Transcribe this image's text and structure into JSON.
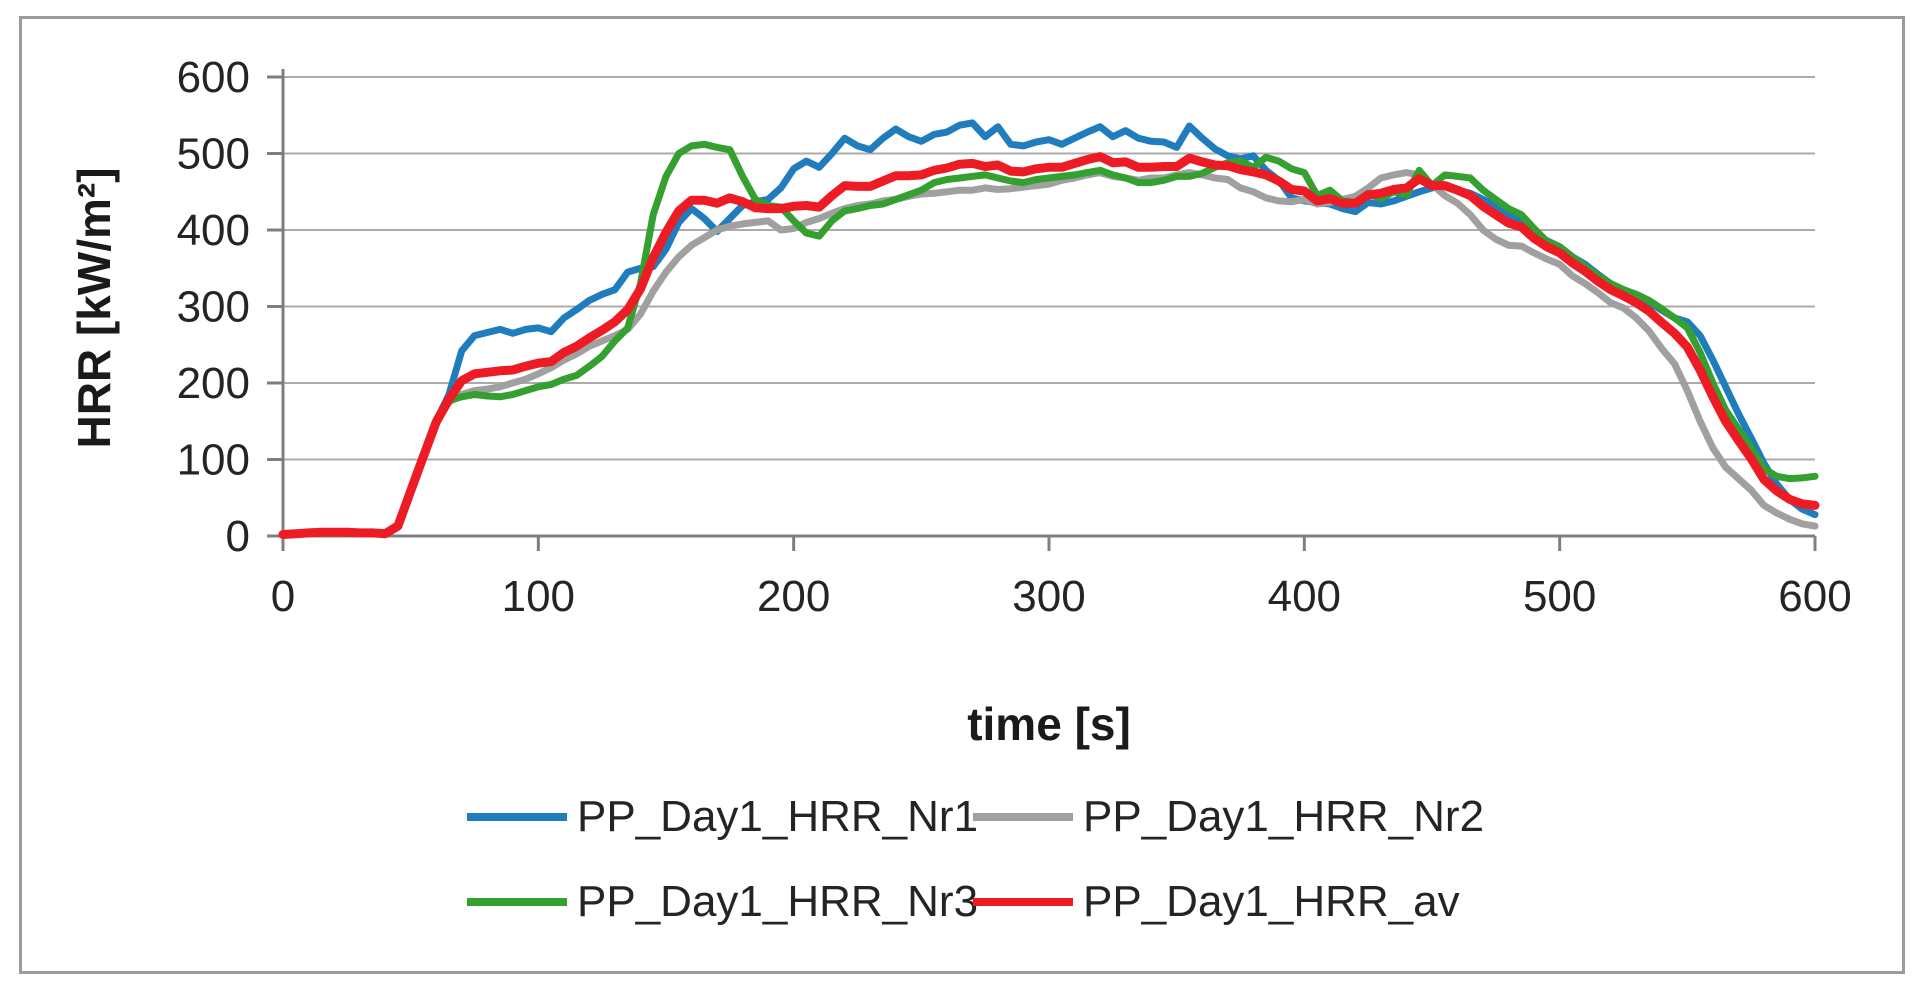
{
  "figure": {
    "background": "#ffffff",
    "border_color": "#9b9b9b"
  },
  "chart_data": {
    "type": "line",
    "title": "",
    "xlabel": "time [s]",
    "ylabel": "HRR [kW/m²]",
    "xlim": [
      0,
      600
    ],
    "ylim": [
      0,
      600
    ],
    "x_ticks": [
      0,
      100,
      200,
      300,
      400,
      500,
      600
    ],
    "y_ticks": [
      0,
      100,
      200,
      300,
      400,
      500,
      600
    ],
    "grid": true,
    "grid_color": "#ababab",
    "axis_color": "#7f7f7f",
    "legend_position": "bottom",
    "x": [
      0,
      5,
      10,
      15,
      20,
      25,
      30,
      35,
      40,
      45,
      50,
      55,
      60,
      65,
      70,
      75,
      80,
      85,
      90,
      95,
      100,
      105,
      110,
      115,
      120,
      125,
      130,
      135,
      140,
      145,
      150,
      155,
      160,
      165,
      170,
      175,
      180,
      185,
      190,
      195,
      200,
      205,
      210,
      215,
      220,
      225,
      230,
      235,
      240,
      245,
      250,
      255,
      260,
      265,
      270,
      275,
      280,
      285,
      290,
      295,
      300,
      305,
      310,
      315,
      320,
      325,
      330,
      335,
      340,
      345,
      350,
      355,
      360,
      365,
      370,
      375,
      380,
      385,
      390,
      395,
      400,
      405,
      410,
      415,
      420,
      425,
      430,
      435,
      440,
      445,
      450,
      455,
      460,
      465,
      470,
      475,
      480,
      485,
      490,
      495,
      500,
      505,
      510,
      515,
      520,
      525,
      530,
      535,
      540,
      545,
      550,
      555,
      560,
      565,
      570,
      575,
      580,
      585,
      590,
      595,
      600
    ],
    "series": [
      {
        "name": "PP_Day1_HRR_Nr1",
        "color": "#1F7DBE",
        "values": [
          3,
          3,
          5,
          6,
          5,
          6,
          5,
          4,
          4,
          15,
          60,
          105,
          150,
          185,
          242,
          262,
          266,
          270,
          265,
          270,
          272,
          267,
          285,
          296,
          308,
          316,
          322,
          345,
          350,
          352,
          375,
          410,
          428,
          415,
          398,
          415,
          432,
          437,
          440,
          455,
          480,
          490,
          482,
          500,
          520,
          510,
          505,
          520,
          532,
          522,
          516,
          525,
          528,
          537,
          540,
          522,
          535,
          512,
          510,
          515,
          518,
          512,
          520,
          528,
          535,
          522,
          530,
          520,
          516,
          515,
          508,
          536,
          520,
          506,
          497,
          493,
          497,
          478,
          465,
          442,
          438,
          436,
          434,
          428,
          424,
          436,
          434,
          438,
          444,
          450,
          455,
          458,
          452,
          448,
          440,
          432,
          420,
          412,
          396,
          386,
          378,
          365,
          355,
          342,
          330,
          322,
          315,
          306,
          295,
          285,
          280,
          262,
          230,
          195,
          160,
          128,
          95,
          68,
          48,
          35,
          28
        ]
      },
      {
        "name": "PP_Day1_HRR_Nr2",
        "color": "#A0A0A0",
        "values": [
          2,
          3,
          4,
          5,
          4,
          5,
          4,
          3,
          3,
          12,
          58,
          102,
          148,
          175,
          185,
          190,
          192,
          195,
          200,
          205,
          212,
          220,
          230,
          238,
          248,
          255,
          262,
          270,
          290,
          320,
          345,
          365,
          380,
          390,
          400,
          405,
          408,
          410,
          412,
          400,
          402,
          410,
          415,
          422,
          428,
          432,
          434,
          438,
          440,
          444,
          447,
          448,
          450,
          452,
          452,
          455,
          453,
          454,
          456,
          458,
          460,
          465,
          468,
          472,
          475,
          470,
          468,
          465,
          468,
          468,
          472,
          475,
          472,
          468,
          466,
          455,
          450,
          442,
          438,
          437,
          440,
          434,
          436,
          440,
          444,
          455,
          468,
          472,
          475,
          472,
          460,
          445,
          435,
          420,
          400,
          388,
          380,
          379,
          370,
          362,
          355,
          340,
          330,
          318,
          305,
          298,
          285,
          268,
          245,
          225,
          190,
          150,
          115,
          90,
          75,
          60,
          40,
          30,
          22,
          16,
          13
        ]
      },
      {
        "name": "PP_Day1_HRR_Nr3",
        "color": "#34A030",
        "values": [
          2,
          3,
          4,
          5,
          5,
          5,
          4,
          4,
          3,
          13,
          59,
          104,
          149,
          177,
          182,
          185,
          183,
          182,
          185,
          190,
          195,
          198,
          205,
          210,
          222,
          235,
          255,
          272,
          330,
          420,
          470,
          500,
          510,
          512,
          508,
          505,
          470,
          440,
          432,
          430,
          412,
          396,
          392,
          412,
          425,
          428,
          432,
          434,
          440,
          446,
          452,
          462,
          466,
          468,
          470,
          472,
          468,
          464,
          462,
          466,
          468,
          470,
          472,
          475,
          478,
          472,
          468,
          462,
          462,
          465,
          470,
          470,
          474,
          482,
          488,
          490,
          482,
          495,
          490,
          480,
          475,
          445,
          452,
          438,
          436,
          448,
          441,
          450,
          446,
          478,
          458,
          472,
          470,
          468,
          452,
          440,
          428,
          420,
          402,
          385,
          378,
          365,
          352,
          340,
          330,
          322,
          316,
          308,
          297,
          285,
          272,
          240,
          200,
          165,
          140,
          115,
          88,
          78,
          75,
          76,
          78
        ]
      },
      {
        "name": "PP_Day1_HRR_av",
        "color": "#ED1C24",
        "values": [
          2,
          3,
          4,
          5,
          5,
          5,
          4,
          4,
          3,
          13,
          59,
          104,
          149,
          179,
          203,
          212,
          214,
          216,
          217,
          222,
          226,
          228,
          240,
          248,
          259,
          269,
          280,
          296,
          323,
          364,
          397,
          425,
          439,
          439,
          435,
          442,
          437,
          429,
          428,
          428,
          431,
          432,
          430,
          445,
          458,
          457,
          457,
          464,
          471,
          471,
          472,
          478,
          481,
          486,
          487,
          483,
          485,
          477,
          476,
          480,
          482,
          482,
          487,
          492,
          496,
          488,
          489,
          482,
          482,
          483,
          483,
          494,
          489,
          485,
          484,
          479,
          476,
          472,
          464,
          453,
          451,
          438,
          441,
          435,
          435,
          446,
          448,
          453,
          455,
          467,
          458,
          458,
          452,
          445,
          431,
          420,
          409,
          404,
          389,
          378,
          370,
          357,
          346,
          333,
          322,
          314,
          305,
          294,
          279,
          265,
          247,
          217,
          182,
          150,
          125,
          101,
          74,
          59,
          48,
          42,
          40
        ]
      }
    ]
  }
}
